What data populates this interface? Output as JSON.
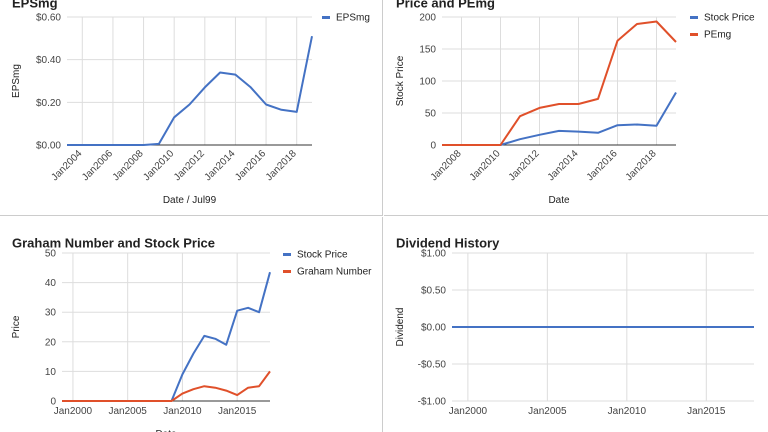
{
  "colors": {
    "blue": "#4472c4",
    "red": "#e0502a",
    "grid": "#dddddd",
    "axis": "#333333"
  },
  "chart_data": [
    {
      "type": "line",
      "title": "EPSmg",
      "xlabel": "Date / Jul99",
      "ylabel": "EPSmg",
      "x": [
        2003,
        2004,
        2005,
        2006,
        2007,
        2008,
        2009,
        2010,
        2011,
        2012,
        2013,
        2014,
        2015,
        2016,
        2017,
        2018,
        2019
      ],
      "series": [
        {
          "name": "EPSmg",
          "color": "#4472c4",
          "values": [
            0,
            0,
            0,
            0,
            0,
            0,
            0.005,
            0.13,
            0.19,
            0.27,
            0.34,
            0.33,
            0.27,
            0.19,
            0.165,
            0.155,
            0.51
          ]
        }
      ],
      "xticks": [
        2004,
        2006,
        2008,
        2010,
        2012,
        2014,
        2016,
        2018
      ],
      "xticklabels": [
        "Jan2004",
        "Jan2006",
        "Jan2008",
        "Jan2010",
        "Jan2012",
        "Jan2014",
        "Jan2016",
        "Jan2018"
      ],
      "yticks": [
        0,
        0.2,
        0.4,
        0.6
      ],
      "yticklabels": [
        "$0.00",
        "$0.20",
        "$0.40",
        "$0.60"
      ],
      "xlim": [
        2003,
        2019
      ],
      "ylim": [
        0,
        0.6
      ],
      "grid": true,
      "legend": "top-right"
    },
    {
      "type": "line",
      "title": "Price and PEmg",
      "xlabel": "Date",
      "ylabel": "Stock Price",
      "x": [
        2007,
        2008,
        2009,
        2010,
        2011,
        2012,
        2013,
        2014,
        2015,
        2016,
        2017,
        2018,
        2019
      ],
      "series": [
        {
          "name": "Stock Price",
          "color": "#4472c4",
          "values": [
            0,
            0,
            0,
            0,
            9,
            16,
            22,
            21,
            19,
            31,
            32,
            30,
            82
          ]
        },
        {
          "name": "PEmg",
          "color": "#e0502a",
          "values": [
            0,
            0,
            0,
            0,
            45,
            58,
            64,
            64,
            72,
            163,
            189,
            193,
            161
          ]
        }
      ],
      "xticks": [
        2008,
        2010,
        2012,
        2014,
        2016,
        2018
      ],
      "xticklabels": [
        "Jan2008",
        "Jan2010",
        "Jan2012",
        "Jan2014",
        "Jan2016",
        "Jan2018"
      ],
      "yticks": [
        0,
        50,
        100,
        150,
        200
      ],
      "yticklabels": [
        "0",
        "50",
        "100",
        "150",
        "200"
      ],
      "xlim": [
        2007,
        2019
      ],
      "ylim": [
        0,
        200
      ],
      "grid": true,
      "legend": "top-right"
    },
    {
      "type": "line",
      "title": "Graham Number and Stock Price",
      "xlabel": "Date",
      "ylabel": "Price",
      "x": [
        1999,
        2000,
        2001,
        2002,
        2003,
        2004,
        2005,
        2006,
        2007,
        2008,
        2009,
        2010,
        2011,
        2012,
        2013,
        2014,
        2015,
        2016,
        2017,
        2018
      ],
      "series": [
        {
          "name": "Stock Price",
          "color": "#4472c4",
          "values": [
            0,
            0,
            0,
            0,
            0,
            0,
            0,
            0,
            0,
            0,
            0,
            9,
            16,
            22,
            21,
            19,
            30.5,
            31.5,
            30,
            43.5
          ]
        },
        {
          "name": "Graham Number",
          "color": "#e0502a",
          "values": [
            0,
            0,
            0,
            0,
            0,
            0,
            0,
            0,
            0,
            0,
            0,
            2.5,
            4,
            5,
            4.5,
            3.5,
            2,
            4.5,
            5,
            10
          ]
        }
      ],
      "xticks": [
        2000,
        2005,
        2010,
        2015
      ],
      "xticklabels": [
        "Jan2000",
        "Jan2005",
        "Jan2010",
        "Jan2015"
      ],
      "yticks": [
        0,
        10,
        20,
        30,
        40,
        50
      ],
      "yticklabels": [
        "0",
        "10",
        "20",
        "30",
        "40",
        "50"
      ],
      "xlim": [
        1999,
        2018
      ],
      "ylim": [
        0,
        50
      ],
      "grid": true,
      "legend": "top-right"
    },
    {
      "type": "line",
      "title": "Dividend History",
      "xlabel": "",
      "ylabel": "Dividend",
      "x": [
        1999,
        2018
      ],
      "series": [
        {
          "name": "Dividend",
          "color": "#4472c4",
          "values": [
            0,
            0
          ]
        }
      ],
      "xticks": [
        2000,
        2005,
        2010,
        2015
      ],
      "xticklabels": [
        "Jan2000",
        "Jan2005",
        "Jan2010",
        "Jan2015"
      ],
      "yticks": [
        -1,
        -0.5,
        0,
        0.5,
        1
      ],
      "yticklabels": [
        "-$1.00",
        "-$0.50",
        "$0.00",
        "$0.50",
        "$1.00"
      ],
      "xlim": [
        1999,
        2018
      ],
      "ylim": [
        -1,
        1
      ],
      "grid": true,
      "legend": "none"
    }
  ]
}
